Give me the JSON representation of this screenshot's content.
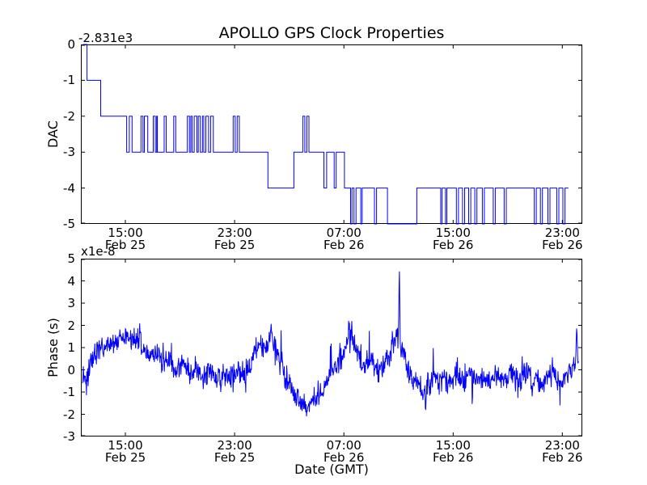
{
  "title": "APOLLO GPS Clock Properties",
  "background_color": "#ffffff",
  "axis_color": "#000000",
  "x_axis": {
    "label": "Date (GMT)",
    "range_hours": [
      0,
      36.72
    ],
    "ticks": [
      {
        "hours": 3.26,
        "time": "15:00",
        "date": "Feb 25"
      },
      {
        "hours": 11.26,
        "time": "23:00",
        "date": "Feb 25"
      },
      {
        "hours": 19.26,
        "time": "07:00",
        "date": "Feb 26"
      },
      {
        "hours": 27.26,
        "time": "15:00",
        "date": "Feb 26"
      },
      {
        "hours": 35.26,
        "time": "23:00",
        "date": "Feb 26"
      }
    ]
  },
  "chart_data": [
    {
      "type": "line",
      "subtype": "step",
      "name": "DAC vs time",
      "ylabel": "DAC",
      "offset_text": "-2.831e3",
      "ylim": [
        -5,
        0
      ],
      "yticks": [
        "0",
        "-1",
        "-2",
        "-3",
        "-4",
        "-5"
      ],
      "line_color": "#0000ff",
      "steps_hours_value": [
        [
          0.15,
          0
        ],
        [
          0.45,
          -1
        ],
        [
          1.45,
          -2
        ],
        [
          3.35,
          -3
        ],
        [
          3.55,
          -2
        ],
        [
          3.75,
          -3
        ],
        [
          4.4,
          -2
        ],
        [
          4.55,
          -3
        ],
        [
          4.65,
          -2
        ],
        [
          4.9,
          -3
        ],
        [
          5.3,
          -2
        ],
        [
          5.45,
          -3
        ],
        [
          5.55,
          -2
        ],
        [
          5.6,
          -3
        ],
        [
          6.1,
          -2
        ],
        [
          6.25,
          -3
        ],
        [
          6.8,
          -2
        ],
        [
          6.95,
          -3
        ],
        [
          7.8,
          -2
        ],
        [
          7.95,
          -3
        ],
        [
          8.05,
          -2
        ],
        [
          8.15,
          -3
        ],
        [
          8.3,
          -2
        ],
        [
          8.5,
          -3
        ],
        [
          8.6,
          -2
        ],
        [
          8.75,
          -3
        ],
        [
          8.9,
          -2
        ],
        [
          9.0,
          -3
        ],
        [
          9.15,
          -2
        ],
        [
          9.35,
          -3
        ],
        [
          9.5,
          -2
        ],
        [
          9.7,
          -3
        ],
        [
          11.15,
          -2
        ],
        [
          11.3,
          -3
        ],
        [
          11.45,
          -2
        ],
        [
          11.6,
          -3
        ],
        [
          13.7,
          -4
        ],
        [
          15.6,
          -3
        ],
        [
          16.25,
          -2
        ],
        [
          16.4,
          -3
        ],
        [
          16.55,
          -2
        ],
        [
          16.7,
          -3
        ],
        [
          17.8,
          -4
        ],
        [
          18.0,
          -3
        ],
        [
          18.55,
          -4
        ],
        [
          18.7,
          -3
        ],
        [
          19.3,
          -4
        ],
        [
          19.75,
          -5
        ],
        [
          19.85,
          -4
        ],
        [
          20.0,
          -5
        ],
        [
          20.15,
          -4
        ],
        [
          20.5,
          -5
        ],
        [
          20.6,
          -4
        ],
        [
          21.5,
          -5
        ],
        [
          21.65,
          -4
        ],
        [
          22.45,
          -5
        ],
        [
          24.6,
          -4
        ],
        [
          26.35,
          -5
        ],
        [
          26.45,
          -4
        ],
        [
          26.7,
          -5
        ],
        [
          26.8,
          -4
        ],
        [
          27.5,
          -5
        ],
        [
          27.65,
          -4
        ],
        [
          27.95,
          -5
        ],
        [
          28.1,
          -4
        ],
        [
          28.4,
          -5
        ],
        [
          28.55,
          -4
        ],
        [
          28.85,
          -5
        ],
        [
          29.0,
          -4
        ],
        [
          29.4,
          -5
        ],
        [
          29.55,
          -4
        ],
        [
          30.2,
          -5
        ],
        [
          30.35,
          -4
        ],
        [
          31.0,
          -5
        ],
        [
          31.15,
          -4
        ],
        [
          33.2,
          -5
        ],
        [
          33.35,
          -4
        ],
        [
          33.65,
          -5
        ],
        [
          33.8,
          -4
        ],
        [
          34.2,
          -5
        ],
        [
          34.35,
          -4
        ],
        [
          34.85,
          -5
        ],
        [
          35.0,
          -4
        ],
        [
          35.3,
          -5
        ],
        [
          35.45,
          -4
        ],
        [
          35.7,
          -4
        ]
      ]
    },
    {
      "type": "line",
      "subtype": "noisy",
      "name": "Phase vs time",
      "ylabel": "Phase (s)",
      "offset_text": "x1e-8",
      "units": "1e-8 s",
      "ylim": [
        -3,
        5
      ],
      "yticks": [
        "5",
        "4",
        "3",
        "2",
        "1",
        "0",
        "-1",
        "-2",
        "-3"
      ],
      "line_color": "#0000ff",
      "noise_std": 0.27,
      "spike_prob": 0.025,
      "n_points": 1250,
      "t_start": 0.12,
      "t_end": 36.45,
      "seed": 42,
      "trend_hours_value": [
        [
          0.15,
          -0.2
        ],
        [
          0.4,
          -0.6
        ],
        [
          0.7,
          0.2
        ],
        [
          1.2,
          0.9
        ],
        [
          2.0,
          1.1
        ],
        [
          2.6,
          1.3
        ],
        [
          3.2,
          1.4
        ],
        [
          3.8,
          1.3
        ],
        [
          4.25,
          1.2
        ],
        [
          4.32,
          2.05
        ],
        [
          4.4,
          1.0
        ],
        [
          5.0,
          0.6
        ],
        [
          5.5,
          0.8
        ],
        [
          6.0,
          0.2
        ],
        [
          6.5,
          0.4
        ],
        [
          7.0,
          -0.1
        ],
        [
          7.5,
          0.3
        ],
        [
          8.0,
          -0.3
        ],
        [
          8.5,
          0.0
        ],
        [
          9.0,
          -0.4
        ],
        [
          9.5,
          -0.1
        ],
        [
          10.0,
          -0.4
        ],
        [
          10.5,
          -0.2
        ],
        [
          11.0,
          -0.4
        ],
        [
          11.5,
          -0.1
        ],
        [
          12.0,
          -0.3
        ],
        [
          12.4,
          0.3
        ],
        [
          12.8,
          0.9
        ],
        [
          13.2,
          1.2
        ],
        [
          13.6,
          0.9
        ],
        [
          13.95,
          1.9
        ],
        [
          14.05,
          1.1
        ],
        [
          14.4,
          0.8
        ],
        [
          14.8,
          0.1
        ],
        [
          15.2,
          -0.5
        ],
        [
          15.6,
          -1.1
        ],
        [
          16.0,
          -1.4
        ],
        [
          16.5,
          -1.6
        ],
        [
          17.0,
          -1.4
        ],
        [
          17.4,
          -1.1
        ],
        [
          17.8,
          -0.8
        ],
        [
          18.2,
          -0.3
        ],
        [
          18.6,
          0.1
        ],
        [
          19.0,
          0.3
        ],
        [
          19.4,
          0.9
        ],
        [
          19.65,
          1.9
        ],
        [
          19.8,
          1.4
        ],
        [
          20.1,
          0.9
        ],
        [
          20.5,
          0.4
        ],
        [
          21.0,
          0.1
        ],
        [
          21.4,
          0.5
        ],
        [
          21.8,
          -0.1
        ],
        [
          22.2,
          0.3
        ],
        [
          22.6,
          0.6
        ],
        [
          22.9,
          1.3
        ],
        [
          23.1,
          1.8
        ],
        [
          23.24,
          1.3
        ],
        [
          23.32,
          4.5
        ],
        [
          23.4,
          1.0
        ],
        [
          23.6,
          0.8
        ],
        [
          23.9,
          0.1
        ],
        [
          24.3,
          -0.4
        ],
        [
          24.7,
          -0.7
        ],
        [
          25.0,
          -1.0
        ],
        [
          25.18,
          -0.9
        ],
        [
          25.25,
          -2.25
        ],
        [
          25.32,
          -0.8
        ],
        [
          25.5,
          -0.8
        ],
        [
          25.8,
          -0.3
        ],
        [
          26.2,
          -0.6
        ],
        [
          26.6,
          -0.3
        ],
        [
          27.0,
          -0.6
        ],
        [
          27.5,
          -0.2
        ],
        [
          28.0,
          -0.5
        ],
        [
          28.5,
          -0.1
        ],
        [
          29.0,
          -0.5
        ],
        [
          29.5,
          -0.3
        ],
        [
          30.0,
          -0.6
        ],
        [
          30.5,
          -0.2
        ],
        [
          31.0,
          -0.5
        ],
        [
          31.5,
          -0.2
        ],
        [
          32.0,
          -0.5
        ],
        [
          32.5,
          -0.1
        ],
        [
          33.0,
          -0.5
        ],
        [
          33.5,
          -0.3
        ],
        [
          34.0,
          -0.5
        ],
        [
          34.5,
          -0.2
        ],
        [
          35.0,
          -0.6
        ],
        [
          35.4,
          -0.3
        ],
        [
          35.8,
          -0.1
        ],
        [
          36.1,
          0.3
        ],
        [
          36.22,
          0.0
        ],
        [
          36.3,
          2.05
        ],
        [
          36.38,
          0.3
        ],
        [
          36.45,
          0.2
        ]
      ]
    }
  ]
}
